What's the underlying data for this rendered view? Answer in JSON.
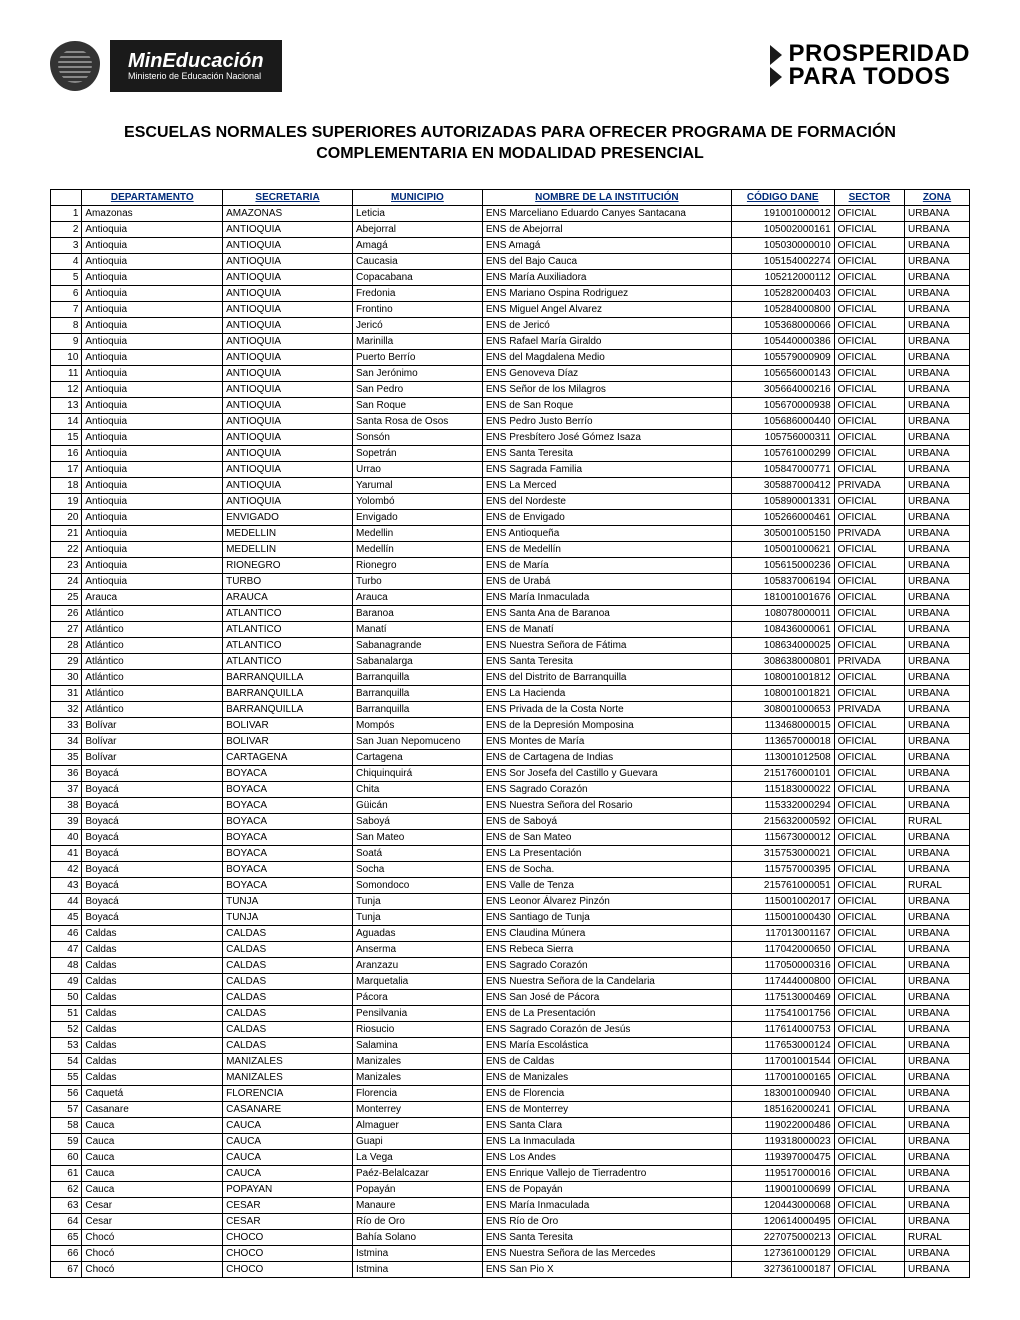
{
  "logos": {
    "mineducacion_title": "MinEducación",
    "mineducacion_sub": "Ministerio de Educación Nacional",
    "prosperidad_l1": "PROSPERIDAD",
    "prosperidad_l2": "PARA TODOS"
  },
  "title": "ESCUELAS NORMALES SUPERIORES AUTORIZADAS PARA OFRECER PROGRAMA DE FORMACIÓN COMPLEMENTARIA EN MODALIDAD PRESENCIAL",
  "columns": [
    "",
    "DEPARTAMENTO",
    "SECRETARIA",
    "MUNICIPIO",
    "NOMBRE DE LA INSTITUCIÓN",
    "CÓDIGO DANE",
    "SECTOR",
    "ZONA"
  ],
  "rows": [
    [
      "1",
      "Amazonas",
      "AMAZONAS",
      "Leticia",
      "ENS Marceliano Eduardo Canyes Santacana",
      "191001000012",
      "OFICIAL",
      "URBANA"
    ],
    [
      "2",
      "Antioquia",
      "ANTIOQUIA",
      "Abejorral",
      "ENS de Abejorral",
      "105002000161",
      "OFICIAL",
      "URBANA"
    ],
    [
      "3",
      "Antioquia",
      "ANTIOQUIA",
      "Amagá",
      "ENS Amagá",
      "105030000010",
      "OFICIAL",
      "URBANA"
    ],
    [
      "4",
      "Antioquia",
      "ANTIOQUIA",
      "Caucasia",
      "ENS del Bajo Cauca",
      "105154002274",
      "OFICIAL",
      "URBANA"
    ],
    [
      "5",
      "Antioquia",
      "ANTIOQUIA",
      "Copacabana",
      "ENS María Auxiliadora",
      "105212000112",
      "OFICIAL",
      "URBANA"
    ],
    [
      "6",
      "Antioquia",
      "ANTIOQUIA",
      "Fredonia",
      "ENS Mariano Ospina Rodriguez",
      "105282000403",
      "OFICIAL",
      "URBANA"
    ],
    [
      "7",
      "Antioquia",
      "ANTIOQUIA",
      "Frontino",
      "ENS Miguel Angel Alvarez",
      "105284000800",
      "OFICIAL",
      "URBANA"
    ],
    [
      "8",
      "Antioquia",
      "ANTIOQUIA",
      "Jericó",
      "ENS de Jericó",
      "105368000066",
      "OFICIAL",
      "URBANA"
    ],
    [
      "9",
      "Antioquia",
      "ANTIOQUIA",
      "Marinilla",
      "ENS Rafael María Giraldo",
      "105440000386",
      "OFICIAL",
      "URBANA"
    ],
    [
      "10",
      "Antioquia",
      "ANTIOQUIA",
      "Puerto Berrío",
      "ENS del Magdalena Medio",
      "105579000909",
      "OFICIAL",
      "URBANA"
    ],
    [
      "11",
      "Antioquia",
      "ANTIOQUIA",
      "San Jerónimo",
      "ENS Genoveva Díaz",
      "105656000143",
      "OFICIAL",
      "URBANA"
    ],
    [
      "12",
      "Antioquia",
      "ANTIOQUIA",
      "San Pedro",
      "ENS Señor de los Milagros",
      "305664000216",
      "OFICIAL",
      "URBANA"
    ],
    [
      "13",
      "Antioquia",
      "ANTIOQUIA",
      "San Roque",
      "ENS de San Roque",
      "105670000938",
      "OFICIAL",
      "URBANA"
    ],
    [
      "14",
      "Antioquia",
      "ANTIOQUIA",
      "Santa Rosa de Osos",
      "ENS Pedro Justo Berrío",
      "105686000440",
      "OFICIAL",
      "URBANA"
    ],
    [
      "15",
      "Antioquia",
      "ANTIOQUIA",
      "Sonsón",
      "ENS Presbítero José Gómez Isaza",
      "105756000311",
      "OFICIAL",
      "URBANA"
    ],
    [
      "16",
      "Antioquia",
      "ANTIOQUIA",
      "Sopetrán",
      "ENS Santa Teresita",
      "105761000299",
      "OFICIAL",
      "URBANA"
    ],
    [
      "17",
      "Antioquia",
      "ANTIOQUIA",
      "Urrao",
      "ENS Sagrada Familia",
      "105847000771",
      "OFICIAL",
      "URBANA"
    ],
    [
      "18",
      "Antioquia",
      "ANTIOQUIA",
      "Yarumal",
      "ENS La Merced",
      "305887000412",
      "PRIVADA",
      "URBANA"
    ],
    [
      "19",
      "Antioquia",
      "ANTIOQUIA",
      "Yolombó",
      "ENS del Nordeste",
      "105890001331",
      "OFICIAL",
      "URBANA"
    ],
    [
      "20",
      "Antioquia",
      "ENVIGADO",
      "Envigado",
      "ENS de Envigado",
      "105266000461",
      "OFICIAL",
      "URBANA"
    ],
    [
      "21",
      "Antioquia",
      "MEDELLIN",
      "Medellin",
      "ENS Antioqueña",
      "305001005150",
      "PRIVADA",
      "URBANA"
    ],
    [
      "22",
      "Antioquia",
      "MEDELLIN",
      "Medellín",
      "ENS de Medellín",
      "105001000621",
      "OFICIAL",
      "URBANA"
    ],
    [
      "23",
      "Antioquia",
      "RIONEGRO",
      "Rionegro",
      "ENS de María",
      "105615000236",
      "OFICIAL",
      "URBANA"
    ],
    [
      "24",
      "Antioquia",
      "TURBO",
      "Turbo",
      "ENS de Urabá",
      "105837006194",
      "OFICIAL",
      "URBANA"
    ],
    [
      "25",
      "Arauca",
      "ARAUCA",
      "Arauca",
      "ENS María Inmaculada",
      "181001001676",
      "OFICIAL",
      "URBANA"
    ],
    [
      "26",
      "Atlántico",
      "ATLANTICO",
      "Baranoa",
      "ENS Santa Ana de Baranoa",
      "108078000011",
      "OFICIAL",
      "URBANA"
    ],
    [
      "27",
      "Atlántico",
      "ATLANTICO",
      "Manatí",
      "ENS de Manatí",
      "108436000061",
      "OFICIAL",
      "URBANA"
    ],
    [
      "28",
      "Atlántico",
      "ATLANTICO",
      "Sabanagrande",
      "ENS Nuestra Señora de Fátima",
      "108634000025",
      "OFICIAL",
      "URBANA"
    ],
    [
      "29",
      "Atlántico",
      "ATLANTICO",
      "Sabanalarga",
      "ENS Santa Teresita",
      "308638000801",
      "PRIVADA",
      "URBANA"
    ],
    [
      "30",
      "Atlántico",
      "BARRANQUILLA",
      "Barranquilla",
      "ENS del Distrito de Barranquilla",
      "108001001812",
      "OFICIAL",
      "URBANA"
    ],
    [
      "31",
      "Atlántico",
      "BARRANQUILLA",
      "Barranquilla",
      "ENS La Hacienda",
      "108001001821",
      "OFICIAL",
      "URBANA"
    ],
    [
      "32",
      "Atlántico",
      "BARRANQUILLA",
      "Barranquilla",
      "ENS Privada de la Costa Norte",
      "308001000653",
      "PRIVADA",
      "URBANA"
    ],
    [
      "33",
      "Bolívar",
      "BOLIVAR",
      "Mompós",
      "ENS de la Depresión Momposina",
      "113468000015",
      "OFICIAL",
      "URBANA"
    ],
    [
      "34",
      "Bolívar",
      "BOLIVAR",
      "San Juan Nepomuceno",
      "ENS Montes de María",
      "113657000018",
      "OFICIAL",
      "URBANA"
    ],
    [
      "35",
      "Bolívar",
      "CARTAGENA",
      "Cartagena",
      "ENS de Cartagena de Indias",
      "113001012508",
      "OFICIAL",
      "URBANA"
    ],
    [
      "36",
      "Boyacá",
      "BOYACA",
      "Chiquinquirá",
      "ENS Sor Josefa del Castillo y Guevara",
      "215176000101",
      "OFICIAL",
      "URBANA"
    ],
    [
      "37",
      "Boyacá",
      "BOYACA",
      "Chita",
      "ENS Sagrado Corazón",
      "115183000022",
      "OFICIAL",
      "URBANA"
    ],
    [
      "38",
      "Boyacá",
      "BOYACA",
      "Güicán",
      "ENS Nuestra Señora del Rosario",
      "115332000294",
      "OFICIAL",
      "URBANA"
    ],
    [
      "39",
      "Boyacá",
      "BOYACA",
      "Saboyá",
      "ENS de Saboyá",
      "215632000592",
      "OFICIAL",
      "RURAL"
    ],
    [
      "40",
      "Boyacá",
      "BOYACA",
      "San Mateo",
      "ENS de San Mateo",
      "115673000012",
      "OFICIAL",
      "URBANA"
    ],
    [
      "41",
      "Boyacá",
      "BOYACA",
      "Soatá",
      "ENS La Presentación",
      "315753000021",
      "OFICIAL",
      "URBANA"
    ],
    [
      "42",
      "Boyacá",
      "BOYACA",
      "Socha",
      "ENS de Socha.",
      "115757000395",
      "OFICIAL",
      "URBANA"
    ],
    [
      "43",
      "Boyacá",
      "BOYACA",
      "Somondoco",
      "ENS Valle de Tenza",
      "215761000051",
      "OFICIAL",
      "RURAL"
    ],
    [
      "44",
      "Boyacá",
      "TUNJA",
      "Tunja",
      "ENS Leonor Álvarez Pinzón",
      "115001002017",
      "OFICIAL",
      "URBANA"
    ],
    [
      "45",
      "Boyacá",
      "TUNJA",
      "Tunja",
      "ENS Santiago de Tunja",
      "115001000430",
      "OFICIAL",
      "URBANA"
    ],
    [
      "46",
      "Caldas",
      "CALDAS",
      "Aguadas",
      "ENS Claudina Múnera",
      "117013001167",
      "OFICIAL",
      "URBANA"
    ],
    [
      "47",
      "Caldas",
      "CALDAS",
      "Anserma",
      "ENS Rebeca Sierra",
      "117042000650",
      "OFICIAL",
      "URBANA"
    ],
    [
      "48",
      "Caldas",
      "CALDAS",
      "Aranzazu",
      "ENS Sagrado Corazón",
      "117050000316",
      "OFICIAL",
      "URBANA"
    ],
    [
      "49",
      "Caldas",
      "CALDAS",
      "Marquetalia",
      "ENS Nuestra Señora de la Candelaria",
      "117444000800",
      "OFICIAL",
      "URBANA"
    ],
    [
      "50",
      "Caldas",
      "CALDAS",
      "Pácora",
      "ENS San José de Pácora",
      "117513000469",
      "OFICIAL",
      "URBANA"
    ],
    [
      "51",
      "Caldas",
      "CALDAS",
      "Pensilvania",
      "ENS de La Presentación",
      "117541001756",
      "OFICIAL",
      "URBANA"
    ],
    [
      "52",
      "Caldas",
      "CALDAS",
      "Riosucio",
      "ENS Sagrado Corazón de Jesús",
      "117614000753",
      "OFICIAL",
      "URBANA"
    ],
    [
      "53",
      "Caldas",
      "CALDAS",
      "Salamina",
      "ENS María Escolástica",
      "117653000124",
      "OFICIAL",
      "URBANA"
    ],
    [
      "54",
      "Caldas",
      "MANIZALES",
      "Manizales",
      "ENS de Caldas",
      "117001001544",
      "OFICIAL",
      "URBANA"
    ],
    [
      "55",
      "Caldas",
      "MANIZALES",
      "Manizales",
      "ENS de Manizales",
      "117001000165",
      "OFICIAL",
      "URBANA"
    ],
    [
      "56",
      "Caquetá",
      "FLORENCIA",
      "Florencia",
      "ENS de Florencia",
      "183001000940",
      "OFICIAL",
      "URBANA"
    ],
    [
      "57",
      "Casanare",
      "CASANARE",
      "Monterrey",
      "ENS de Monterrey",
      "185162000241",
      "OFICIAL",
      "URBANA"
    ],
    [
      "58",
      "Cauca",
      "CAUCA",
      "Almaguer",
      "ENS Santa Clara",
      "119022000486",
      "OFICIAL",
      "URBANA"
    ],
    [
      "59",
      "Cauca",
      "CAUCA",
      "Guapi",
      "ENS La Inmaculada",
      "119318000023",
      "OFICIAL",
      "URBANA"
    ],
    [
      "60",
      "Cauca",
      "CAUCA",
      "La Vega",
      "ENS Los Andes",
      "119397000475",
      "OFICIAL",
      "URBANA"
    ],
    [
      "61",
      "Cauca",
      "CAUCA",
      "Paéz-Belalcazar",
      "ENS Enrique Vallejo de Tierradentro",
      "119517000016",
      "OFICIAL",
      "URBANA"
    ],
    [
      "62",
      "Cauca",
      "POPAYAN",
      "Popayán",
      "ENS de Popayán",
      "119001000699",
      "OFICIAL",
      "URBANA"
    ],
    [
      "63",
      "Cesar",
      "CESAR",
      "Manaure",
      "ENS María Inmaculada",
      "120443000068",
      "OFICIAL",
      "URBANA"
    ],
    [
      "64",
      "Cesar",
      "CESAR",
      "Río de Oro",
      "ENS Río de Oro",
      "120614000495",
      "OFICIAL",
      "URBANA"
    ],
    [
      "65",
      "Chocó",
      "CHOCO",
      "Bahía Solano",
      "ENS Santa Teresita",
      "227075000213",
      "OFICIAL",
      "RURAL"
    ],
    [
      "66",
      "Chocó",
      "CHOCO",
      "Istmina",
      "ENS Nuestra Señora de las Mercedes",
      "127361000129",
      "OFICIAL",
      "URBANA"
    ],
    [
      "67",
      "Chocó",
      "CHOCO",
      "Istmina",
      "ENS San Pio X",
      "327361000187",
      "OFICIAL",
      "URBANA"
    ]
  ]
}
